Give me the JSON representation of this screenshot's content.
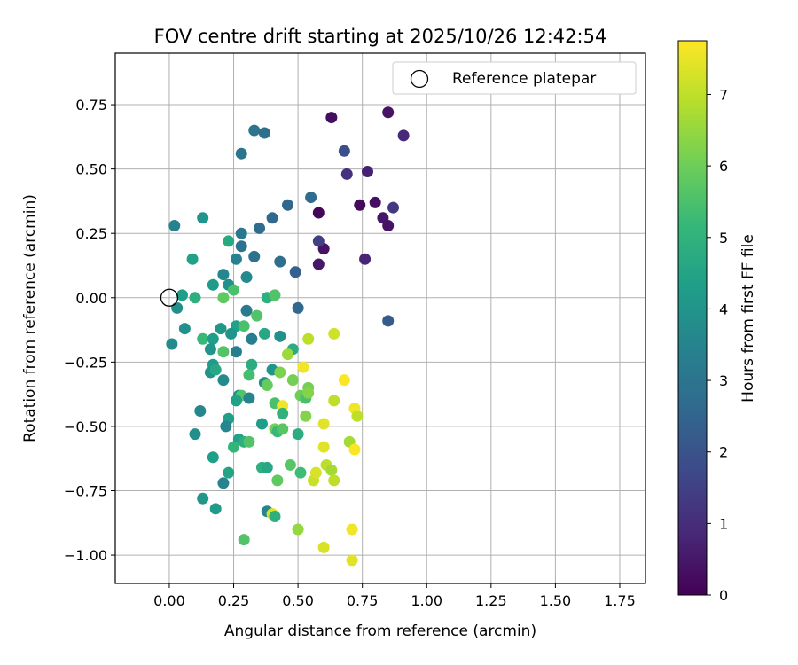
{
  "chart_data": {
    "type": "scatter",
    "title": "FOV centre drift starting at 2025/10/26 12:42:54",
    "xlabel": "Angular distance from reference (arcmin)",
    "ylabel": "Rotation from reference (arcmin)",
    "xlim": [
      -0.21,
      1.85
    ],
    "ylim": [
      -1.11,
      0.95
    ],
    "grid": true,
    "x_ticks": [
      0.0,
      0.25,
      0.5,
      0.75,
      1.0,
      1.25,
      1.5,
      1.75
    ],
    "x_tick_labels": [
      "0.00",
      "0.25",
      "0.50",
      "0.75",
      "1.00",
      "1.25",
      "1.50",
      "1.75"
    ],
    "y_ticks": [
      0.75,
      0.5,
      0.25,
      0.0,
      -0.25,
      -0.5,
      -0.75,
      -1.0
    ],
    "y_tick_labels": [
      "0.75",
      "0.50",
      "0.25",
      "0.00",
      "−0.25",
      "−0.50",
      "−0.75",
      "−1.00"
    ],
    "legend": {
      "position": "top-right",
      "entries": [
        "Reference platepar"
      ]
    },
    "reference_point": {
      "x": 0.0,
      "y": 0.0
    },
    "colorbar": {
      "label": "Hours from first FF file",
      "range": [
        0,
        7.75
      ],
      "ticks": [
        0,
        1,
        2,
        3,
        4,
        5,
        6,
        7
      ],
      "tick_labels": [
        "0",
        "1",
        "2",
        "3",
        "4",
        "5",
        "6",
        "7"
      ],
      "colormap": [
        "#440154",
        "#482878",
        "#3e4989",
        "#31688e",
        "#26828e",
        "#1f9e89",
        "#35b779",
        "#6ece58",
        "#b5de2b",
        "#fde725"
      ]
    },
    "points": [
      {
        "x": 0.63,
        "y": 0.7,
        "h": 0.3
      },
      {
        "x": 0.85,
        "y": 0.72,
        "h": 0.4
      },
      {
        "x": 0.91,
        "y": 0.63,
        "h": 0.9
      },
      {
        "x": 0.68,
        "y": 0.57,
        "h": 1.9
      },
      {
        "x": 0.69,
        "y": 0.48,
        "h": 1.1
      },
      {
        "x": 0.77,
        "y": 0.49,
        "h": 0.7
      },
      {
        "x": 0.58,
        "y": 0.33,
        "h": 0.1
      },
      {
        "x": 0.74,
        "y": 0.36,
        "h": 0.2
      },
      {
        "x": 0.8,
        "y": 0.37,
        "h": 0.3
      },
      {
        "x": 0.83,
        "y": 0.31,
        "h": 0.5
      },
      {
        "x": 0.87,
        "y": 0.35,
        "h": 1.3
      },
      {
        "x": 0.85,
        "y": 0.28,
        "h": 0.4
      },
      {
        "x": 0.6,
        "y": 0.19,
        "h": 0.4
      },
      {
        "x": 0.58,
        "y": 0.22,
        "h": 1.5
      },
      {
        "x": 0.58,
        "y": 0.13,
        "h": 0.5
      },
      {
        "x": 0.76,
        "y": 0.15,
        "h": 0.8
      },
      {
        "x": 0.55,
        "y": 0.39,
        "h": 2.7
      },
      {
        "x": 0.85,
        "y": -0.09,
        "h": 2.2
      },
      {
        "x": 0.33,
        "y": 0.65,
        "h": 3.0
      },
      {
        "x": 0.37,
        "y": 0.64,
        "h": 2.8
      },
      {
        "x": 0.28,
        "y": 0.56,
        "h": 3.0
      },
      {
        "x": 0.46,
        "y": 0.36,
        "h": 2.6
      },
      {
        "x": 0.4,
        "y": 0.31,
        "h": 2.6
      },
      {
        "x": 0.35,
        "y": 0.27,
        "h": 2.7
      },
      {
        "x": 0.28,
        "y": 0.25,
        "h": 3.1
      },
      {
        "x": 0.28,
        "y": 0.2,
        "h": 2.9
      },
      {
        "x": 0.33,
        "y": 0.16,
        "h": 2.9
      },
      {
        "x": 0.43,
        "y": 0.14,
        "h": 2.8
      },
      {
        "x": 0.49,
        "y": 0.1,
        "h": 2.4
      },
      {
        "x": 0.5,
        "y": -0.04,
        "h": 2.6
      },
      {
        "x": 0.02,
        "y": 0.28,
        "h": 3.4
      },
      {
        "x": 0.13,
        "y": 0.31,
        "h": 4.0
      },
      {
        "x": 0.09,
        "y": 0.15,
        "h": 4.4
      },
      {
        "x": 0.23,
        "y": 0.22,
        "h": 4.7
      },
      {
        "x": 0.26,
        "y": 0.15,
        "h": 3.4
      },
      {
        "x": 0.21,
        "y": 0.09,
        "h": 3.6
      },
      {
        "x": 0.3,
        "y": 0.08,
        "h": 3.7
      },
      {
        "x": 0.17,
        "y": 0.05,
        "h": 4.2
      },
      {
        "x": 0.23,
        "y": 0.05,
        "h": 3.9
      },
      {
        "x": 0.25,
        "y": 0.03,
        "h": 5.5
      },
      {
        "x": 0.05,
        "y": 0.01,
        "h": 4.3
      },
      {
        "x": 0.1,
        "y": 0.0,
        "h": 4.9
      },
      {
        "x": 0.21,
        "y": 0.0,
        "h": 5.8
      },
      {
        "x": 0.38,
        "y": 0.0,
        "h": 4.9
      },
      {
        "x": 0.41,
        "y": 0.01,
        "h": 5.6
      },
      {
        "x": 0.03,
        "y": -0.04,
        "h": 3.8
      },
      {
        "x": 0.3,
        "y": -0.05,
        "h": 3.2
      },
      {
        "x": 0.34,
        "y": -0.07,
        "h": 5.6
      },
      {
        "x": 0.06,
        "y": -0.12,
        "h": 3.9
      },
      {
        "x": 0.2,
        "y": -0.12,
        "h": 4.1
      },
      {
        "x": 0.26,
        "y": -0.11,
        "h": 4.4
      },
      {
        "x": 0.29,
        "y": -0.11,
        "h": 5.5
      },
      {
        "x": 0.13,
        "y": -0.16,
        "h": 5.2
      },
      {
        "x": 0.17,
        "y": -0.16,
        "h": 4.3
      },
      {
        "x": 0.24,
        "y": -0.14,
        "h": 4.0
      },
      {
        "x": 0.32,
        "y": -0.16,
        "h": 3.3
      },
      {
        "x": 0.37,
        "y": -0.14,
        "h": 4.6
      },
      {
        "x": 0.43,
        "y": -0.15,
        "h": 3.9
      },
      {
        "x": 0.01,
        "y": -0.18,
        "h": 3.7
      },
      {
        "x": 0.16,
        "y": -0.2,
        "h": 4.0
      },
      {
        "x": 0.21,
        "y": -0.21,
        "h": 5.6
      },
      {
        "x": 0.26,
        "y": -0.21,
        "h": 3.3
      },
      {
        "x": 0.48,
        "y": -0.2,
        "h": 4.8
      },
      {
        "x": 0.46,
        "y": -0.22,
        "h": 6.6
      },
      {
        "x": 0.17,
        "y": -0.26,
        "h": 4.2
      },
      {
        "x": 0.32,
        "y": -0.26,
        "h": 4.8
      },
      {
        "x": 0.4,
        "y": -0.28,
        "h": 4.0
      },
      {
        "x": 0.43,
        "y": -0.29,
        "h": 6.2
      },
      {
        "x": 0.52,
        "y": -0.27,
        "h": 7.6
      },
      {
        "x": 0.54,
        "y": -0.16,
        "h": 7.0
      },
      {
        "x": 0.64,
        "y": -0.14,
        "h": 7.2
      },
      {
        "x": 0.16,
        "y": -0.29,
        "h": 4.0
      },
      {
        "x": 0.18,
        "y": -0.28,
        "h": 4.6
      },
      {
        "x": 0.31,
        "y": -0.3,
        "h": 5.4
      },
      {
        "x": 0.21,
        "y": -0.32,
        "h": 3.7
      },
      {
        "x": 0.37,
        "y": -0.33,
        "h": 3.9
      },
      {
        "x": 0.38,
        "y": -0.34,
        "h": 5.9
      },
      {
        "x": 0.48,
        "y": -0.32,
        "h": 6.1
      },
      {
        "x": 0.54,
        "y": -0.35,
        "h": 6.1
      },
      {
        "x": 0.68,
        "y": -0.32,
        "h": 7.7
      },
      {
        "x": 0.27,
        "y": -0.38,
        "h": 3.8
      },
      {
        "x": 0.28,
        "y": -0.38,
        "h": 5.6
      },
      {
        "x": 0.31,
        "y": -0.39,
        "h": 3.5
      },
      {
        "x": 0.41,
        "y": -0.41,
        "h": 5.5
      },
      {
        "x": 0.44,
        "y": -0.42,
        "h": 7.6
      },
      {
        "x": 0.51,
        "y": -0.38,
        "h": 6.0
      },
      {
        "x": 0.53,
        "y": -0.39,
        "h": 5.5
      },
      {
        "x": 0.54,
        "y": -0.37,
        "h": 6.3
      },
      {
        "x": 0.64,
        "y": -0.4,
        "h": 7.0
      },
      {
        "x": 0.12,
        "y": -0.44,
        "h": 3.6
      },
      {
        "x": 0.26,
        "y": -0.4,
        "h": 4.4
      },
      {
        "x": 0.23,
        "y": -0.47,
        "h": 4.3
      },
      {
        "x": 0.36,
        "y": -0.49,
        "h": 4.3
      },
      {
        "x": 0.44,
        "y": -0.45,
        "h": 5.0
      },
      {
        "x": 0.53,
        "y": -0.46,
        "h": 6.3
      },
      {
        "x": 0.6,
        "y": -0.49,
        "h": 7.4
      },
      {
        "x": 0.72,
        "y": -0.43,
        "h": 7.6
      },
      {
        "x": 0.73,
        "y": -0.46,
        "h": 7.0
      },
      {
        "x": 0.1,
        "y": -0.53,
        "h": 3.8
      },
      {
        "x": 0.22,
        "y": -0.5,
        "h": 3.6
      },
      {
        "x": 0.27,
        "y": -0.55,
        "h": 4.4
      },
      {
        "x": 0.29,
        "y": -0.56,
        "h": 4.9
      },
      {
        "x": 0.31,
        "y": -0.56,
        "h": 5.6
      },
      {
        "x": 0.41,
        "y": -0.51,
        "h": 6.1
      },
      {
        "x": 0.42,
        "y": -0.52,
        "h": 5.2
      },
      {
        "x": 0.44,
        "y": -0.51,
        "h": 5.7
      },
      {
        "x": 0.5,
        "y": -0.53,
        "h": 4.8
      },
      {
        "x": 0.25,
        "y": -0.58,
        "h": 5.1
      },
      {
        "x": 0.23,
        "y": -0.68,
        "h": 4.5
      },
      {
        "x": 0.17,
        "y": -0.62,
        "h": 4.3
      },
      {
        "x": 0.36,
        "y": -0.66,
        "h": 4.9
      },
      {
        "x": 0.38,
        "y": -0.66,
        "h": 4.6
      },
      {
        "x": 0.42,
        "y": -0.71,
        "h": 5.8
      },
      {
        "x": 0.47,
        "y": -0.65,
        "h": 5.7
      },
      {
        "x": 0.51,
        "y": -0.68,
        "h": 5.3
      },
      {
        "x": 0.6,
        "y": -0.58,
        "h": 7.4
      },
      {
        "x": 0.7,
        "y": -0.56,
        "h": 6.7
      },
      {
        "x": 0.72,
        "y": -0.59,
        "h": 7.7
      },
      {
        "x": 0.56,
        "y": -0.71,
        "h": 7.1
      },
      {
        "x": 0.57,
        "y": -0.68,
        "h": 7.3
      },
      {
        "x": 0.61,
        "y": -0.65,
        "h": 7.0
      },
      {
        "x": 0.63,
        "y": -0.67,
        "h": 6.7
      },
      {
        "x": 0.64,
        "y": -0.71,
        "h": 7.0
      },
      {
        "x": 0.21,
        "y": -0.72,
        "h": 3.5
      },
      {
        "x": 0.13,
        "y": -0.78,
        "h": 4.1
      },
      {
        "x": 0.18,
        "y": -0.82,
        "h": 4.2
      },
      {
        "x": 0.38,
        "y": -0.83,
        "h": 3.5
      },
      {
        "x": 0.4,
        "y": -0.84,
        "h": 7.3
      },
      {
        "x": 0.41,
        "y": -0.85,
        "h": 4.9
      },
      {
        "x": 0.29,
        "y": -0.94,
        "h": 5.6
      },
      {
        "x": 0.5,
        "y": -0.9,
        "h": 6.5
      },
      {
        "x": 0.6,
        "y": -0.97,
        "h": 7.3
      },
      {
        "x": 0.71,
        "y": -0.9,
        "h": 7.6
      },
      {
        "x": 0.71,
        "y": -1.02,
        "h": 7.4
      }
    ]
  }
}
